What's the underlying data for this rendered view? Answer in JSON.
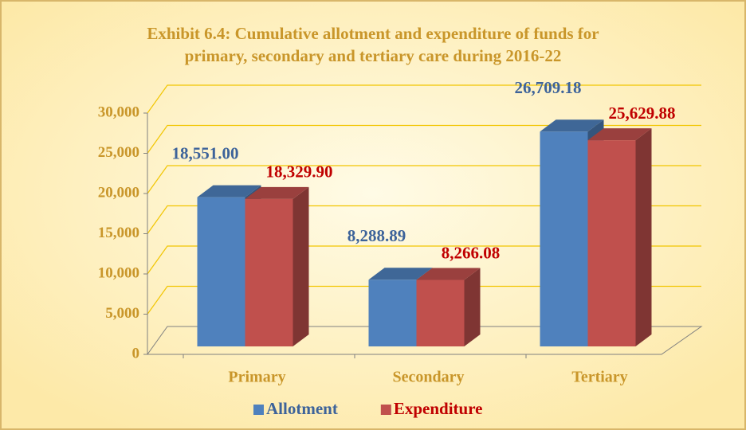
{
  "chart_data": {
    "type": "bar3d",
    "title": "Exhibit 6.4: Cumulative allotment and expenditure of funds for",
    "subtitle": "primary, secondary and tertiary care during 2016-22",
    "categories": [
      "Primary",
      "Secondary",
      "Tertiary"
    ],
    "series": [
      {
        "name": "Allotment",
        "color": "#4f81bd",
        "label_color": "#3d639a",
        "values": [
          18551.0,
          8288.89,
          26709.18
        ],
        "value_labels": [
          "18,551.00",
          "8,288.89",
          "26,709.18"
        ]
      },
      {
        "name": "Expenditure",
        "color": "#c0504d",
        "label_color": "#c00000",
        "values": [
          18329.9,
          8266.08,
          25629.88
        ],
        "value_labels": [
          "18,329.90",
          "8,266.08",
          "25,629.88"
        ]
      }
    ],
    "ylim": [
      0,
      30000
    ],
    "yticks": [
      0,
      {
        "value": 5000,
        "label": "5,000"
      },
      {
        "value": 10000,
        "label": "10,000"
      },
      {
        "value": 15000,
        "label": "15,000"
      },
      {
        "value": 20000,
        "label": "20,000"
      },
      {
        "value": 25000,
        "label": "25,000"
      },
      {
        "value": 30000,
        "label": "30,000"
      }
    ],
    "grid": true,
    "legend": "bottom"
  }
}
